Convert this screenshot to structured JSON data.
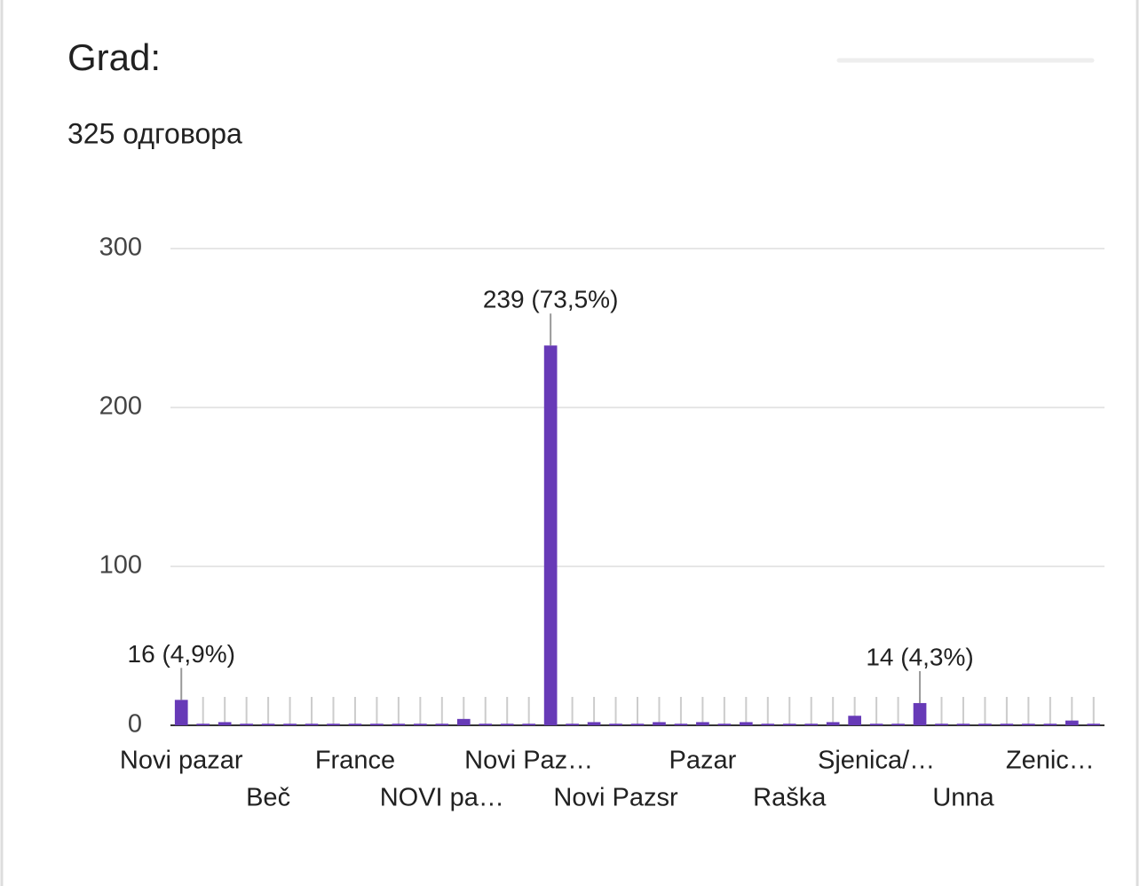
{
  "chart_data": {
    "type": "bar",
    "title": "Grad:",
    "subtitle": "325 одговора",
    "categories": [
      "Novi pazar",
      null,
      null,
      null,
      "Beč",
      null,
      null,
      null,
      "France",
      null,
      null,
      null,
      "NOVI pa…",
      null,
      null,
      null,
      "Novi Paz…",
      null,
      null,
      null,
      "Novi Pazsr",
      null,
      null,
      null,
      "Pazar",
      null,
      null,
      null,
      "Raška",
      null,
      null,
      null,
      "Sjenica/…",
      null,
      null,
      null,
      "Unna",
      null,
      null,
      null,
      "Zenic…",
      null,
      null
    ],
    "values": [
      16,
      1,
      2,
      1,
      1,
      1,
      1,
      1,
      1,
      1,
      1,
      1,
      1,
      4,
      1,
      1,
      1,
      239,
      1,
      2,
      1,
      1,
      2,
      1,
      2,
      1,
      2,
      1,
      1,
      1,
      2,
      6,
      1,
      1,
      14,
      1,
      1,
      1,
      1,
      1,
      1,
      3,
      1
    ],
    "value_labels": [
      "16 (4,9%)",
      null,
      null,
      null,
      null,
      null,
      null,
      null,
      null,
      null,
      null,
      null,
      null,
      null,
      null,
      null,
      null,
      "239 (73,5%)",
      null,
      null,
      null,
      null,
      null,
      null,
      null,
      null,
      null,
      null,
      null,
      null,
      null,
      null,
      null,
      null,
      "14 (4,3%)",
      null,
      null,
      null,
      null,
      null,
      null,
      null,
      null
    ],
    "color": "#673ab7",
    "ylim": [
      0,
      300
    ],
    "yticks": [
      0,
      100,
      200,
      300
    ],
    "grid": true
  }
}
